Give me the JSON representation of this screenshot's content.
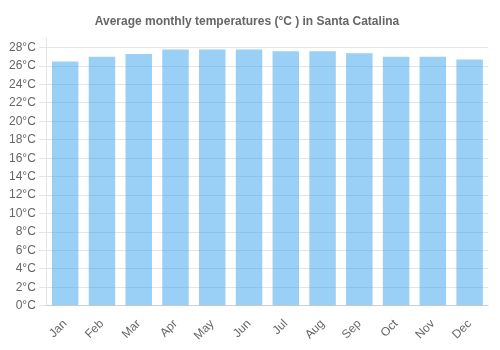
{
  "chart_data": {
    "type": "bar",
    "title": "Average monthly temperatures (°C ) in Santa Catalina",
    "categories": [
      "Jan",
      "Feb",
      "Mar",
      "Apr",
      "May",
      "Jun",
      "Jul",
      "Aug",
      "Sep",
      "Oct",
      "Nov",
      "Dec"
    ],
    "values": [
      26.5,
      27.0,
      27.3,
      27.8,
      27.8,
      27.8,
      27.6,
      27.6,
      27.4,
      27.0,
      27.0,
      26.7
    ],
    "ylim": [
      0,
      29
    ],
    "yticks": [
      {
        "value": 0,
        "label": "0°C"
      },
      {
        "value": 2,
        "label": "2°C"
      },
      {
        "value": 4,
        "label": "4°C"
      },
      {
        "value": 6,
        "label": "6°C"
      },
      {
        "value": 8,
        "label": "8°C"
      },
      {
        "value": 10,
        "label": "10°C"
      },
      {
        "value": 12,
        "label": "12°C"
      },
      {
        "value": 14,
        "label": "14°C"
      },
      {
        "value": 16,
        "label": "16°C"
      },
      {
        "value": 18,
        "label": "18°C"
      },
      {
        "value": 20,
        "label": "20°C"
      },
      {
        "value": 22,
        "label": "22°C"
      },
      {
        "value": 24,
        "label": "24°C"
      },
      {
        "value": 26,
        "label": "26°C"
      },
      {
        "value": 28,
        "label": "28°C"
      }
    ],
    "grid": true
  }
}
